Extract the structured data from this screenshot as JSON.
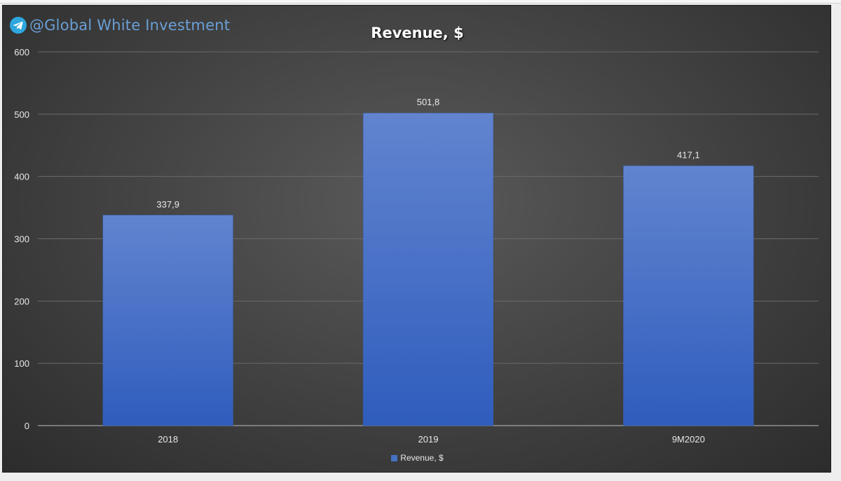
{
  "watermark": {
    "text": "@Global White Investment",
    "icon": "telegram-icon"
  },
  "colors": {
    "bar_top": "#6284cf",
    "bar_bottom": "#2f5dbd",
    "grid": "#6a6a6a",
    "axis": "#bdbdbd",
    "legend_swatch": "#4472c4"
  },
  "chart_data": {
    "type": "bar",
    "title": "Revenue, $",
    "categories": [
      "2018",
      "2019",
      "9M2020"
    ],
    "series": [
      {
        "name": "Revenue, $",
        "values": [
          337.9,
          501.8,
          417.1
        ],
        "labels": [
          "337,9",
          "501,8",
          "417,1"
        ]
      }
    ],
    "ylim": [
      0,
      600
    ],
    "yticks": [
      0,
      100,
      200,
      300,
      400,
      500,
      600
    ],
    "grid": true,
    "legend": "bottom-center"
  }
}
